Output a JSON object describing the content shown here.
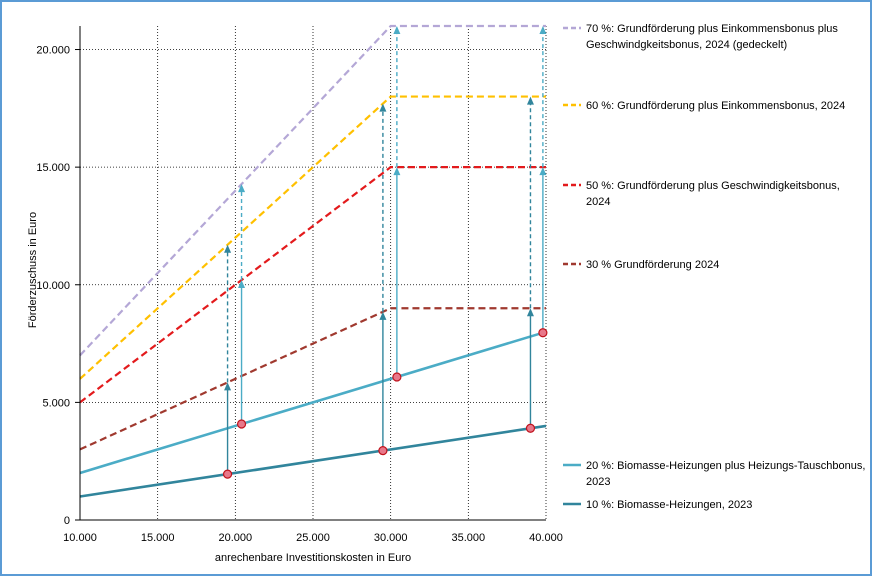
{
  "chart_data": {
    "type": "line",
    "title": "",
    "xlabel": "anrechenbare Investitionskosten in Euro",
    "ylabel": "Förderzuschuss in Euro",
    "xlim": [
      10000,
      40000
    ],
    "ylim": [
      0,
      21000
    ],
    "x_ticks": [
      10000,
      15000,
      20000,
      25000,
      30000,
      35000,
      40000
    ],
    "x_tick_labels": [
      "10.000",
      "15.000",
      "20.000",
      "25.000",
      "30.000",
      "35.000",
      "40.000"
    ],
    "y_ticks": [
      0,
      5000,
      10000,
      15000,
      20000
    ],
    "y_tick_labels": [
      "0",
      "5.000",
      "10.000",
      "15.000",
      "20.000"
    ],
    "grid": true,
    "legend_position": "right",
    "series": [
      {
        "id": "s70",
        "name": "70 %: Grundförderung plus Einkommensbonus plus Geschwindgkeitsbonus, 2024 (gedeckelt)",
        "legend_lines": [
          "70 %: Grundförderung plus Einkommensbonus plus",
          "Geschwindgkeitsbonus, 2024 (gedeckelt)"
        ],
        "color": "#b4a7d6",
        "dashed": true,
        "x": [
          10000,
          30000,
          40000
        ],
        "y": [
          7000,
          21000,
          21000
        ]
      },
      {
        "id": "s60",
        "name": "60 %: Grundförderung plus Einkommensbonus, 2024",
        "legend_lines": [
          "60 %: Grundförderung plus Einkommensbonus, 2024"
        ],
        "color": "#ffc000",
        "dashed": true,
        "x": [
          10000,
          30000,
          40000
        ],
        "y": [
          6000,
          18000,
          18000
        ]
      },
      {
        "id": "s50",
        "name": "50 %: Grundförderung plus Geschwindigkeitsbonus, 2024",
        "legend_lines": [
          "50 %: Grundförderung plus Geschwindigkeitsbonus,",
          "2024"
        ],
        "color": "#e31a1c",
        "dashed": true,
        "x": [
          10000,
          30000,
          40000
        ],
        "y": [
          5000,
          15000,
          15000
        ]
      },
      {
        "id": "s30",
        "name": "30 % Grundförderung 2024",
        "legend_lines": [
          "30 % Grundförderung 2024"
        ],
        "color": "#a0392f",
        "dashed": true,
        "x": [
          10000,
          30000,
          40000
        ],
        "y": [
          3000,
          9000,
          9000
        ]
      },
      {
        "id": "s20",
        "name": "20 %: Biomasse-Heizungen plus Heizungs-Tauschbonus, 2023",
        "legend_lines": [
          "20 %: Biomasse-Heizungen plus Heizungs-Tauschbonus,",
          "2023"
        ],
        "color": "#4bacc6",
        "dashed": false,
        "x": [
          10000,
          40000
        ],
        "y": [
          2000,
          8000
        ]
      },
      {
        "id": "s10",
        "name": "10 %: Biomasse-Heizungen, 2023",
        "legend_lines": [
          "10 %: Biomasse-Heizungen, 2023"
        ],
        "color": "#31859c",
        "dashed": false,
        "x": [
          10000,
          40000
        ],
        "y": [
          1000,
          4000
        ]
      }
    ],
    "points": [
      {
        "x": 19500,
        "y": 1950
      },
      {
        "x": 20400,
        "y": 4080
      },
      {
        "x": 29500,
        "y": 2950
      },
      {
        "x": 30400,
        "y": 6080
      },
      {
        "x": 39000,
        "y": 3900
      },
      {
        "x": 39800,
        "y": 7960
      }
    ],
    "arrows": [
      {
        "x": 19500,
        "from": 1950,
        "to": 5850,
        "color": "#31859c",
        "dashed": false
      },
      {
        "x": 19500,
        "from": 5850,
        "to": 11700,
        "color": "#31859c",
        "dashed": true
      },
      {
        "x": 20400,
        "from": 4080,
        "to": 10200,
        "color": "#4bacc6",
        "dashed": false
      },
      {
        "x": 20400,
        "from": 10200,
        "to": 14280,
        "color": "#4bacc6",
        "dashed": true
      },
      {
        "x": 29500,
        "from": 2950,
        "to": 8850,
        "color": "#31859c",
        "dashed": false
      },
      {
        "x": 29500,
        "from": 8850,
        "to": 17700,
        "color": "#31859c",
        "dashed": true
      },
      {
        "x": 30400,
        "from": 6080,
        "to": 15000,
        "color": "#4bacc6",
        "dashed": false
      },
      {
        "x": 30400,
        "from": 15000,
        "to": 21000,
        "color": "#4bacc6",
        "dashed": true
      },
      {
        "x": 39000,
        "from": 3900,
        "to": 9000,
        "color": "#31859c",
        "dashed": false
      },
      {
        "x": 39000,
        "from": 9000,
        "to": 18000,
        "color": "#31859c",
        "dashed": true
      },
      {
        "x": 39800,
        "from": 7960,
        "to": 15000,
        "color": "#4bacc6",
        "dashed": false
      },
      {
        "x": 39800,
        "from": 15000,
        "to": 21000,
        "color": "#4bacc6",
        "dashed": true
      }
    ]
  }
}
